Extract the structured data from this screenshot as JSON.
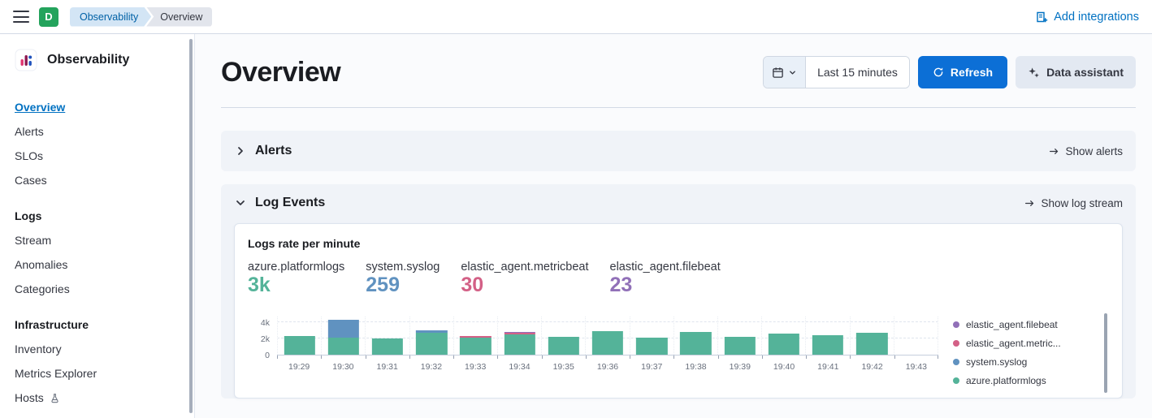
{
  "topbar": {
    "logo_letter": "D",
    "breadcrumbs": [
      {
        "label": "Observability"
      },
      {
        "label": "Overview"
      }
    ],
    "add_integrations_label": "Add integrations"
  },
  "sidebar": {
    "title": "Observability",
    "sections": [
      {
        "heading": "",
        "items": [
          {
            "label": "Overview",
            "active": true
          },
          {
            "label": "Alerts"
          },
          {
            "label": "SLOs"
          },
          {
            "label": "Cases"
          }
        ]
      },
      {
        "heading": "Logs",
        "items": [
          {
            "label": "Stream"
          },
          {
            "label": "Anomalies"
          },
          {
            "label": "Categories"
          }
        ]
      },
      {
        "heading": "Infrastructure",
        "items": [
          {
            "label": "Inventory"
          },
          {
            "label": "Metrics Explorer"
          },
          {
            "label": "Hosts",
            "badge": "flask"
          }
        ]
      }
    ]
  },
  "header": {
    "title": "Overview",
    "time_range": "Last 15 minutes",
    "refresh_label": "Refresh",
    "data_assistant_label": "Data assistant"
  },
  "panels": {
    "alerts": {
      "title": "Alerts",
      "action_label": "Show alerts"
    },
    "log_events": {
      "title": "Log Events",
      "action_label": "Show log stream"
    }
  },
  "metrics": [
    {
      "label": "azure.platformlogs",
      "value": "3k",
      "color": "#54b399"
    },
    {
      "label": "system.syslog",
      "value": "259",
      "color": "#6092c0"
    },
    {
      "label": "elastic_agent.metricbeat",
      "value": "30",
      "color": "#d36086"
    },
    {
      "label": "elastic_agent.filebeat",
      "value": "23",
      "color": "#9170b8"
    }
  ],
  "chart_data": {
    "type": "bar",
    "stacked": true,
    "title": "Logs rate per minute",
    "xlabel": "",
    "ylabel": "",
    "ylim": [
      0,
      4800
    ],
    "grid": true,
    "legend_position": "right",
    "x": [
      "19:29",
      "19:30",
      "19:31",
      "19:32",
      "19:33",
      "19:34",
      "19:35",
      "19:36",
      "19:37",
      "19:38",
      "19:39",
      "19:40",
      "19:41",
      "19:42",
      "19:43"
    ],
    "y_ticks": [
      {
        "value": 0,
        "label": "0"
      },
      {
        "value": 2000,
        "label": "2k"
      },
      {
        "value": 4000,
        "label": "4k"
      }
    ],
    "series": [
      {
        "name": "azure.platformlogs",
        "color": "#54b399",
        "values": [
          2300,
          2100,
          2000,
          2700,
          2100,
          2500,
          2200,
          2900,
          2100,
          2800,
          2200,
          2600,
          2400,
          2700,
          0
        ]
      },
      {
        "name": "system.syslog",
        "color": "#6092c0",
        "values": [
          0,
          2200,
          0,
          250,
          0,
          0,
          0,
          0,
          0,
          0,
          0,
          0,
          0,
          0,
          0
        ]
      },
      {
        "name": "elastic_agent.metricbeat",
        "color": "#d36086",
        "values": [
          0,
          0,
          0,
          0,
          120,
          180,
          0,
          0,
          0,
          0,
          0,
          0,
          0,
          0,
          0
        ]
      },
      {
        "name": "elastic_agent.filebeat",
        "color": "#9170b8",
        "values": [
          0,
          0,
          0,
          0,
          0,
          120,
          0,
          0,
          0,
          0,
          0,
          0,
          0,
          0,
          0
        ]
      }
    ],
    "legend_items": [
      {
        "label": "elastic_agent.filebeat",
        "color": "#9170b8"
      },
      {
        "label": "elastic_agent.metric...",
        "color": "#d36086"
      },
      {
        "label": "system.syslog",
        "color": "#6092c0"
      },
      {
        "label": "azure.platformlogs",
        "color": "#54b399"
      }
    ]
  }
}
